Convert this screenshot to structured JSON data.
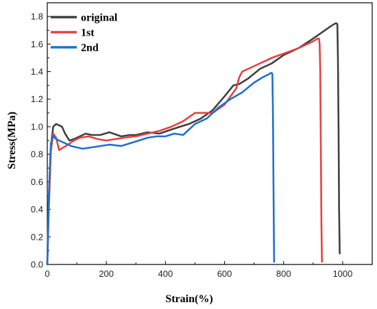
{
  "chart_data": {
    "type": "line",
    "xlabel": "Strain(%)",
    "ylabel": "Stress(MPa)",
    "xlim": [
      0,
      1100
    ],
    "ylim": [
      0,
      1.9
    ],
    "xticks": [
      "0",
      "200",
      "400",
      "600",
      "800",
      "1000"
    ],
    "yticks": [
      "0.0",
      "0.2",
      "0.4",
      "0.6",
      "0.8",
      "1.0",
      "1.2",
      "1.4",
      "1.6",
      "1.8"
    ],
    "grid": false,
    "legend_position": "top-left",
    "series": [
      {
        "name": "original",
        "color": "#3f3f3f",
        "x": [
          0,
          5,
          12,
          20,
          30,
          50,
          60,
          75,
          90,
          110,
          130,
          150,
          180,
          210,
          250,
          280,
          300,
          340,
          380,
          420,
          450,
          480,
          520,
          560,
          600,
          630,
          650,
          680,
          720,
          760,
          800,
          850,
          900,
          940,
          960,
          975,
          980,
          982,
          984,
          986,
          988,
          990
        ],
        "y": [
          0,
          0.45,
          0.85,
          1.0,
          1.02,
          1.0,
          0.95,
          0.9,
          0.91,
          0.93,
          0.95,
          0.94,
          0.94,
          0.96,
          0.93,
          0.94,
          0.94,
          0.96,
          0.95,
          0.98,
          1.0,
          1.02,
          1.06,
          1.12,
          1.22,
          1.3,
          1.31,
          1.35,
          1.42,
          1.46,
          1.52,
          1.57,
          1.64,
          1.7,
          1.73,
          1.75,
          1.75,
          1.74,
          1.5,
          1.0,
          0.4,
          0.08
        ]
      },
      {
        "name": "1st",
        "color": "#e84040",
        "x": [
          0,
          5,
          12,
          20,
          30,
          40,
          55,
          70,
          90,
          110,
          140,
          170,
          200,
          230,
          260,
          300,
          340,
          380,
          420,
          460,
          500,
          540,
          560,
          600,
          620,
          640,
          650,
          660,
          680,
          720,
          760,
          800,
          850,
          880,
          900,
          915,
          920,
          922,
          924,
          926,
          928,
          930
        ],
        "y": [
          0,
          0.4,
          0.82,
          0.95,
          0.92,
          0.83,
          0.85,
          0.87,
          0.9,
          0.92,
          0.93,
          0.91,
          0.9,
          0.91,
          0.92,
          0.93,
          0.95,
          0.97,
          1.0,
          1.04,
          1.1,
          1.1,
          1.1,
          1.16,
          1.22,
          1.28,
          1.36,
          1.4,
          1.42,
          1.46,
          1.5,
          1.53,
          1.57,
          1.6,
          1.62,
          1.64,
          1.64,
          1.6,
          1.4,
          0.9,
          0.3,
          0.02
        ]
      },
      {
        "name": "2nd",
        "color": "#1f6fd0",
        "x": [
          0,
          5,
          12,
          20,
          30,
          40,
          60,
          80,
          100,
          120,
          150,
          180,
          210,
          250,
          280,
          310,
          340,
          370,
          400,
          430,
          460,
          480,
          500,
          540,
          580,
          620,
          660,
          700,
          730,
          750,
          757,
          760,
          762,
          764,
          766,
          768
        ],
        "y": [
          0,
          0.5,
          0.88,
          0.93,
          0.91,
          0.9,
          0.88,
          0.86,
          0.85,
          0.84,
          0.85,
          0.86,
          0.87,
          0.86,
          0.88,
          0.9,
          0.92,
          0.93,
          0.93,
          0.95,
          0.94,
          0.98,
          1.02,
          1.06,
          1.14,
          1.2,
          1.25,
          1.32,
          1.36,
          1.38,
          1.39,
          1.39,
          1.38,
          1.1,
          0.5,
          0.02
        ]
      }
    ]
  }
}
